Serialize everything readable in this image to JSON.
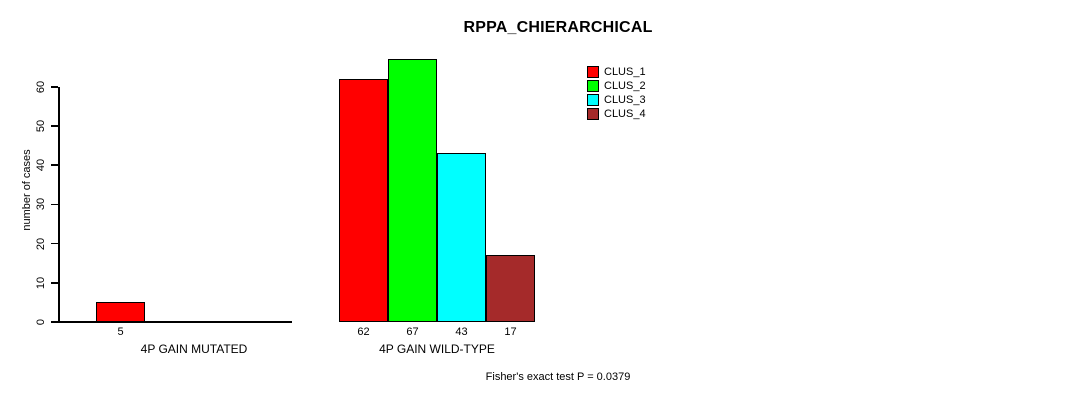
{
  "chart_data": {
    "type": "bar",
    "title": "RPPA_CHIERARCHICAL",
    "xlabel": "",
    "ylabel": "number of cases",
    "categories": [
      "4P GAIN MUTATED",
      "4P GAIN WILD-TYPE"
    ],
    "series": [
      {
        "name": "CLUS_1",
        "color": "#ff0000",
        "values": [
          5,
          62
        ]
      },
      {
        "name": "CLUS_2",
        "color": "#00ff00",
        "values": [
          0,
          67
        ]
      },
      {
        "name": "CLUS_3",
        "color": "#00ffff",
        "values": [
          0,
          43
        ]
      },
      {
        "name": "CLUS_4",
        "color": "#a52a2a",
        "values": [
          0,
          17
        ]
      }
    ],
    "ylim": [
      0,
      60
    ],
    "yticks": [
      0,
      10,
      20,
      30,
      40,
      50,
      60
    ],
    "grid": false,
    "legend_position": "top-right",
    "annotation": "Fisher's exact test P = 0.0379",
    "colors": {
      "axis": "#000000",
      "text": "#000000",
      "background": "#ffffff"
    }
  }
}
